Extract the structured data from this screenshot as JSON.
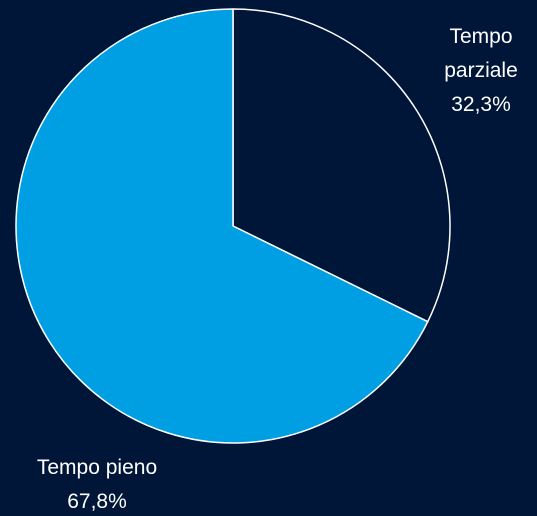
{
  "chart_data": {
    "type": "pie",
    "categories": [
      "Tempo parziale",
      "Tempo pieno"
    ],
    "values": [
      32.3,
      67.8
    ],
    "value_labels": [
      "32,3%",
      "67,8%"
    ],
    "colors": [
      "#001638",
      "#009fe3"
    ]
  }
}
